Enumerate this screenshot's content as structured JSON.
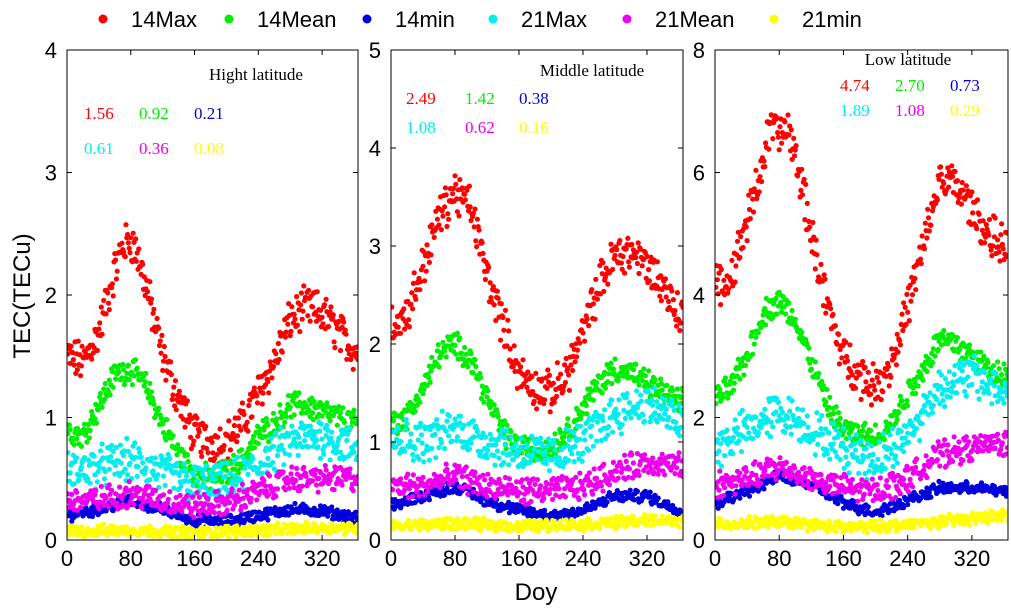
{
  "chart_data": {
    "type": "scatter",
    "xlabel": "Doy",
    "ylabel": "TEC(TECu)",
    "legend_position": "top",
    "series_info": [
      {
        "name": "14Max",
        "color": "#ff0000"
      },
      {
        "name": "14Mean",
        "color": "#00ee00"
      },
      {
        "name": "14min",
        "color": "#0000dd"
      },
      {
        "name": "21Max",
        "color": "#00eeee"
      },
      {
        "name": "21Mean",
        "color": "#ee00ee"
      },
      {
        "name": "21min",
        "color": "#ffff00"
      }
    ],
    "panels": [
      {
        "title": "Hight latitude",
        "xlim": [
          0,
          365
        ],
        "ylim": [
          0,
          4
        ],
        "xticks": [
          "0",
          "80",
          "160",
          "240",
          "320"
        ],
        "yticks": [
          "0",
          "1",
          "2",
          "3",
          "4"
        ],
        "stats": [
          {
            "text": "1.56",
            "color": "#ff0000"
          },
          {
            "text": "0.92",
            "color": "#00ee00"
          },
          {
            "text": "0.21",
            "color": "#0000dd"
          },
          {
            "text": "0.61",
            "color": "#00eeee"
          },
          {
            "text": "0.36",
            "color": "#ee00ee"
          },
          {
            "text": "0.08",
            "color": "#ffff00"
          }
        ],
        "series": [
          {
            "name": "14Max",
            "x": [
              0,
              20,
              40,
              60,
              70,
              80,
              90,
              100,
              120,
              140,
              160,
              180,
              200,
              220,
              240,
              260,
              280,
              300,
              320,
              340,
              360
            ],
            "y": [
              1.5,
              1.45,
              1.7,
              2.2,
              2.4,
              2.45,
              2.3,
              2.05,
              1.5,
              1.15,
              0.85,
              0.8,
              0.8,
              0.95,
              1.2,
              1.45,
              1.8,
              1.9,
              1.85,
              1.7,
              1.55
            ]
          },
          {
            "name": "14Mean",
            "x": [
              0,
              20,
              40,
              60,
              80,
              100,
              120,
              140,
              160,
              180,
              200,
              220,
              240,
              260,
              280,
              300,
              320,
              340,
              360
            ],
            "y": [
              0.9,
              0.85,
              1.1,
              1.35,
              1.4,
              1.25,
              0.95,
              0.7,
              0.55,
              0.5,
              0.55,
              0.65,
              0.85,
              0.95,
              1.1,
              1.1,
              1.05,
              1.0,
              0.95
            ]
          },
          {
            "name": "14min",
            "x": [
              0,
              40,
              80,
              120,
              160,
              200,
              240,
              280,
              320,
              360
            ],
            "y": [
              0.2,
              0.25,
              0.32,
              0.25,
              0.16,
              0.15,
              0.2,
              0.25,
              0.24,
              0.18
            ]
          },
          {
            "name": "21Max",
            "x": [
              0,
              40,
              80,
              120,
              160,
              200,
              240,
              280,
              320,
              360
            ],
            "y": [
              0.55,
              0.6,
              0.65,
              0.55,
              0.45,
              0.45,
              0.6,
              0.8,
              0.85,
              0.75
            ]
          },
          {
            "name": "21Mean",
            "x": [
              0,
              40,
              80,
              120,
              160,
              200,
              240,
              280,
              320,
              360
            ],
            "y": [
              0.32,
              0.33,
              0.38,
              0.32,
              0.28,
              0.3,
              0.4,
              0.5,
              0.5,
              0.5
            ]
          },
          {
            "name": "21min",
            "x": [
              0,
              80,
              160,
              240,
              320,
              360
            ],
            "y": [
              0.07,
              0.08,
              0.06,
              0.08,
              0.1,
              0.1
            ]
          }
        ]
      },
      {
        "title": "Middle latitude",
        "xlim": [
          0,
          365
        ],
        "ylim": [
          0,
          5
        ],
        "xticks": [
          "0",
          "80",
          "160",
          "240",
          "320"
        ],
        "yticks": [
          "0",
          "1",
          "2",
          "3",
          "4",
          "5"
        ],
        "stats": [
          {
            "text": "2.49",
            "color": "#ff0000"
          },
          {
            "text": "1.42",
            "color": "#00ee00"
          },
          {
            "text": "0.38",
            "color": "#0000dd"
          },
          {
            "text": "1.08",
            "color": "#00eeee"
          },
          {
            "text": "0.62",
            "color": "#ee00ee"
          },
          {
            "text": "0.16",
            "color": "#ffff00"
          }
        ],
        "series": [
          {
            "name": "14Max",
            "x": [
              0,
              20,
              40,
              60,
              80,
              100,
              120,
              140,
              160,
              180,
              200,
              220,
              240,
              260,
              280,
              300,
              320,
              340,
              360
            ],
            "y": [
              2.2,
              2.3,
              2.8,
              3.3,
              3.55,
              3.4,
              2.7,
              2.2,
              1.7,
              1.55,
              1.5,
              1.7,
              2.1,
              2.6,
              2.9,
              2.95,
              2.8,
              2.6,
              2.3
            ]
          },
          {
            "name": "14Mean",
            "x": [
              0,
              20,
              40,
              60,
              80,
              100,
              120,
              140,
              160,
              180,
              200,
              220,
              240,
              260,
              280,
              300,
              320,
              340,
              360
            ],
            "y": [
              1.2,
              1.25,
              1.55,
              1.9,
              2.0,
              1.85,
              1.45,
              1.1,
              0.95,
              0.9,
              0.95,
              1.1,
              1.35,
              1.6,
              1.75,
              1.7,
              1.6,
              1.5,
              1.4
            ]
          },
          {
            "name": "14min",
            "x": [
              0,
              40,
              80,
              120,
              160,
              200,
              240,
              280,
              320,
              360
            ],
            "y": [
              0.35,
              0.45,
              0.55,
              0.4,
              0.3,
              0.25,
              0.3,
              0.45,
              0.45,
              0.3
            ]
          },
          {
            "name": "21Max",
            "x": [
              0,
              40,
              80,
              120,
              160,
              200,
              240,
              280,
              320,
              360
            ],
            "y": [
              1.05,
              1.0,
              1.15,
              1.0,
              0.9,
              0.85,
              1.0,
              1.3,
              1.4,
              1.2
            ]
          },
          {
            "name": "21Mean",
            "x": [
              0,
              40,
              80,
              120,
              160,
              200,
              240,
              280,
              320,
              360
            ],
            "y": [
              0.55,
              0.55,
              0.65,
              0.55,
              0.5,
              0.5,
              0.55,
              0.7,
              0.8,
              0.75
            ]
          },
          {
            "name": "21min",
            "x": [
              0,
              80,
              160,
              240,
              320,
              360
            ],
            "y": [
              0.14,
              0.17,
              0.14,
              0.16,
              0.2,
              0.2
            ]
          }
        ]
      },
      {
        "title": "Low latitude",
        "xlim": [
          0,
          365
        ],
        "ylim": [
          0,
          8
        ],
        "xticks": [
          "0",
          "80",
          "160",
          "240",
          "320"
        ],
        "yticks": [
          "0",
          "2",
          "4",
          "6",
          "8"
        ],
        "stats": [
          {
            "text": "4.74",
            "color": "#ff0000"
          },
          {
            "text": "2.70",
            "color": "#00ee00"
          },
          {
            "text": "0.73",
            "color": "#0000dd"
          },
          {
            "text": "1.89",
            "color": "#00eeee"
          },
          {
            "text": "1.08",
            "color": "#ee00ee"
          },
          {
            "text": "0.29",
            "color": "#ffff00"
          }
        ],
        "series": [
          {
            "name": "14Max",
            "x": [
              0,
              20,
              40,
              60,
              70,
              80,
              90,
              100,
              120,
              140,
              160,
              180,
              200,
              220,
              240,
              260,
              280,
              300,
              320,
              340,
              360
            ],
            "y": [
              4.1,
              4.3,
              5.2,
              6.2,
              6.8,
              6.6,
              6.7,
              6.3,
              5.0,
              3.8,
              3.0,
              2.7,
              2.5,
              2.9,
              3.8,
              4.8,
              5.9,
              5.8,
              5.4,
              5.0,
              4.8
            ]
          },
          {
            "name": "14Mean",
            "x": [
              0,
              20,
              40,
              60,
              80,
              100,
              120,
              140,
              160,
              180,
              200,
              220,
              240,
              260,
              280,
              300,
              320,
              340,
              360
            ],
            "y": [
              2.3,
              2.5,
              3.0,
              3.7,
              3.9,
              3.6,
              2.9,
              2.2,
              1.8,
              1.7,
              1.7,
              1.9,
              2.4,
              2.8,
              3.3,
              3.2,
              3.0,
              2.8,
              2.7
            ]
          },
          {
            "name": "14min",
            "x": [
              0,
              40,
              80,
              120,
              160,
              200,
              240,
              280,
              320,
              360
            ],
            "y": [
              0.6,
              0.8,
              1.05,
              0.9,
              0.6,
              0.45,
              0.65,
              0.85,
              0.85,
              0.8
            ]
          },
          {
            "name": "21Max",
            "x": [
              0,
              40,
              80,
              120,
              160,
              200,
              240,
              280,
              320,
              360
            ],
            "y": [
              1.5,
              1.8,
              2.1,
              1.8,
              1.5,
              1.3,
              1.7,
              2.5,
              2.7,
              2.4
            ]
          },
          {
            "name": "21Mean",
            "x": [
              0,
              40,
              80,
              120,
              160,
              200,
              240,
              280,
              320,
              360
            ],
            "y": [
              0.9,
              1.0,
              1.2,
              1.0,
              0.85,
              0.8,
              1.0,
              1.4,
              1.5,
              1.6
            ]
          },
          {
            "name": "21min",
            "x": [
              0,
              80,
              160,
              240,
              320,
              360
            ],
            "y": [
              0.25,
              0.3,
              0.2,
              0.25,
              0.35,
              0.4
            ]
          }
        ]
      }
    ]
  }
}
